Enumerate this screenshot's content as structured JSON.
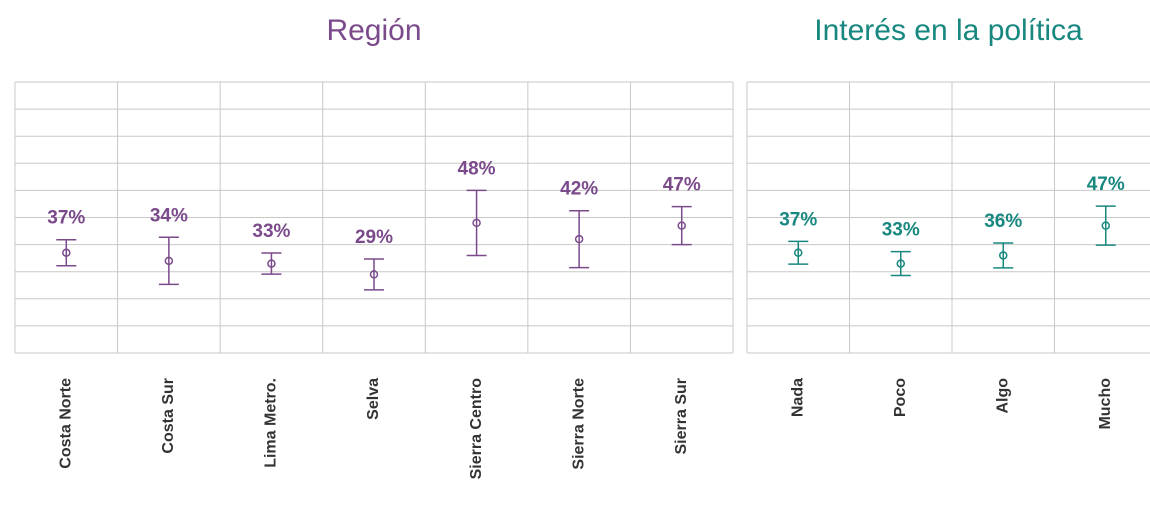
{
  "chart_data": [
    {
      "type": "errorbar",
      "title": "Región",
      "color": "#7b4a8b",
      "categories": [
        "Costa Norte",
        "Costa Sur",
        "Lima Metro.",
        "Selva",
        "Sierra Centro",
        "Sierra Norte",
        "Sierra Sur"
      ],
      "values": [
        37,
        34,
        33,
        29,
        48,
        42,
        47
      ],
      "value_labels": [
        "37%",
        "34%",
        "33%",
        "29%",
        "48%",
        "42%",
        "47%"
      ],
      "errors": [
        4.8,
        8.7,
        3.9,
        5.7,
        12,
        10.5,
        7
      ],
      "ylim": [
        0,
        100
      ],
      "yticks": [
        0,
        10,
        20,
        30,
        40,
        50,
        60,
        70,
        80,
        90,
        100
      ],
      "grid": true
    },
    {
      "type": "errorbar",
      "title": "Interés en la política",
      "color": "#17877f",
      "categories": [
        "Nada",
        "Poco",
        "Algo",
        "Mucho"
      ],
      "values": [
        37,
        33,
        36,
        47
      ],
      "value_labels": [
        "37%",
        "33%",
        "36%",
        "47%"
      ],
      "errors": [
        4.2,
        4.4,
        4.6,
        7.2
      ],
      "ylim": [
        0,
        100
      ],
      "yticks": [
        0,
        10,
        20,
        30,
        40,
        50,
        60,
        70,
        80,
        90,
        100
      ],
      "grid": true
    }
  ]
}
